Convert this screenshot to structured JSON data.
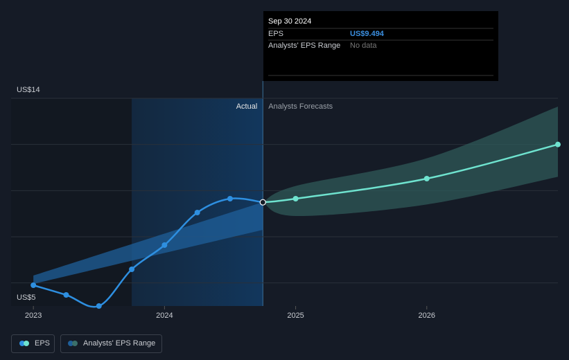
{
  "chart_data": {
    "type": "line",
    "xlim": [
      2022.83,
      2027.0
    ],
    "xticks": [
      2023,
      2024,
      2025,
      2026
    ],
    "ylim": [
      5,
      14
    ],
    "yticks": [
      {
        "value": 5,
        "label": "US$5"
      },
      {
        "value": 6,
        "label": null
      },
      {
        "value": 8,
        "label": null
      },
      {
        "value": 10,
        "label": null
      },
      {
        "value": 12,
        "label": null
      },
      {
        "value": 14,
        "label": "US$14"
      }
    ],
    "grid": true,
    "divider_x": 2024.75,
    "highlight_xlim": [
      2023.75,
      2024.75
    ],
    "actual_label": "Actual",
    "forecast_label": "Analysts Forecasts",
    "series": [
      {
        "name": "EPS",
        "color": "#2e8fe0",
        "forecast_color": "#6fe3cf",
        "x": [
          2023,
          2023.25,
          2023.5,
          2023.75,
          2024,
          2024.25,
          2024.5,
          2024.75,
          2025,
          2026,
          2027
        ],
        "values": [
          5.9,
          5.48,
          5.0,
          6.59,
          7.64,
          9.05,
          9.65,
          9.494,
          9.65,
          10.52,
          12.0
        ]
      }
    ],
    "range": {
      "name": "Analysts' EPS Range",
      "color": "#3a6f6a",
      "segments": [
        {
          "color": "#1f5f9a",
          "x": [
            2023,
            2024.75
          ],
          "low": [
            5.96,
            8.3
          ],
          "high": [
            6.32,
            9.5
          ]
        },
        {
          "color": "#2f5a58",
          "x": [
            2024.75,
            2025,
            2026,
            2027
          ],
          "low": [
            9.494,
            8.9,
            9.4,
            10.6
          ],
          "high": [
            9.494,
            10.2,
            11.4,
            13.64
          ]
        }
      ]
    },
    "tooltip": {
      "date": "Sep 30 2024",
      "rows": [
        {
          "label": "EPS",
          "value": "US$9.494"
        },
        {
          "label": "Analysts' EPS Range",
          "value": "No data"
        }
      ]
    },
    "legend": [
      "EPS",
      "Analysts' EPS Range"
    ]
  }
}
